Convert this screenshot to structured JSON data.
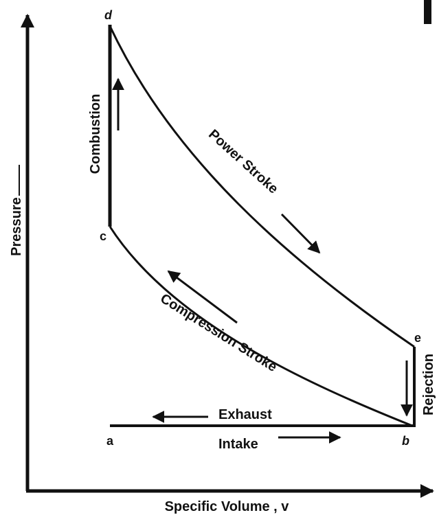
{
  "axes": {
    "y_label": "Pressure",
    "x_label": "Specific Volume , v"
  },
  "points": {
    "a": "a",
    "b": "b",
    "c": "c",
    "d": "d",
    "e": "e"
  },
  "processes": {
    "combustion": "Combustion",
    "power": "Power Stroke",
    "compression": "Compression Stroke",
    "exhaust": "Exhaust",
    "intake": "Intake",
    "rejection": "Rejection"
  }
}
